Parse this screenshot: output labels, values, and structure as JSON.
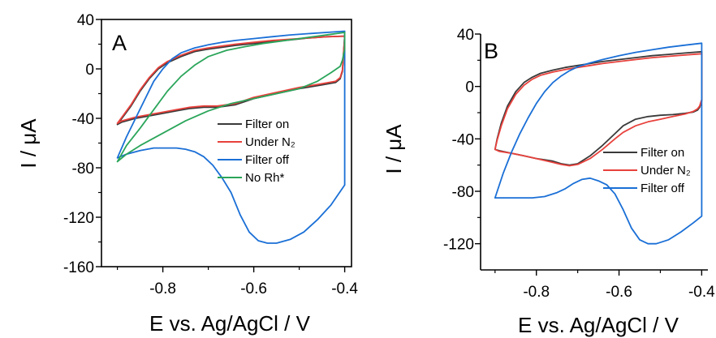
{
  "chart_data": [
    {
      "type": "line",
      "panel_label": "A",
      "xlabel": "E vs. Ag/AgCl / V",
      "ylabel": "I / μA",
      "xlim": [
        -0.935,
        -0.385
      ],
      "ylim": [
        -160,
        40
      ],
      "xticks": [
        -0.8,
        -0.6,
        -0.4
      ],
      "yticks": [
        40,
        0,
        -40,
        -80,
        -120,
        -160
      ],
      "grid": false,
      "legend_position": "right",
      "series": [
        {
          "name": "Filter on",
          "color": "#3a3a3a",
          "x": [
            -0.9,
            -0.89,
            -0.87,
            -0.85,
            -0.83,
            -0.81,
            -0.79,
            -0.76,
            -0.73,
            -0.7,
            -0.67,
            -0.64,
            -0.6,
            -0.56,
            -0.52,
            -0.48,
            -0.44,
            -0.4,
            -0.4,
            -0.405,
            -0.41,
            -0.42,
            -0.45,
            -0.5,
            -0.55,
            -0.6,
            -0.64,
            -0.68,
            -0.71,
            -0.74,
            -0.77,
            -0.8,
            -0.83,
            -0.86,
            -0.89,
            -0.9
          ],
          "y": [
            -45,
            -40,
            -30,
            -18,
            -8,
            0,
            5,
            10,
            14,
            16,
            17.5,
            19,
            20.5,
            22,
            23.5,
            25,
            26,
            26.5,
            26.5,
            -2,
            -8,
            -11,
            -13,
            -16,
            -20,
            -24,
            -29,
            -31,
            -31,
            -32,
            -34,
            -36,
            -38,
            -40,
            -43,
            -45
          ]
        },
        {
          "name": "Under N₂",
          "color": "#e8413c",
          "x": [
            -0.9,
            -0.89,
            -0.87,
            -0.85,
            -0.83,
            -0.81,
            -0.79,
            -0.76,
            -0.73,
            -0.7,
            -0.67,
            -0.64,
            -0.6,
            -0.56,
            -0.52,
            -0.48,
            -0.44,
            -0.4,
            -0.4,
            -0.405,
            -0.41,
            -0.42,
            -0.45,
            -0.5,
            -0.55,
            -0.6,
            -0.64,
            -0.68,
            -0.71,
            -0.74,
            -0.77,
            -0.8,
            -0.83,
            -0.86,
            -0.89,
            -0.9
          ],
          "y": [
            -44,
            -39,
            -29,
            -17,
            -7,
            1,
            6,
            11,
            15,
            17,
            18.5,
            20,
            21.5,
            23,
            24,
            25,
            26,
            26.5,
            26.5,
            -1,
            -7,
            -10,
            -12,
            -15,
            -19,
            -23,
            -28,
            -30,
            -30,
            -31,
            -33,
            -35,
            -37,
            -39,
            -42,
            -44
          ]
        },
        {
          "name": "Filter off",
          "color": "#1a6fd6",
          "x": [
            -0.9,
            -0.88,
            -0.86,
            -0.84,
            -0.82,
            -0.8,
            -0.78,
            -0.76,
            -0.73,
            -0.7,
            -0.67,
            -0.64,
            -0.6,
            -0.56,
            -0.52,
            -0.48,
            -0.44,
            -0.4,
            -0.4,
            -0.43,
            -0.46,
            -0.49,
            -0.52,
            -0.55,
            -0.57,
            -0.59,
            -0.61,
            -0.63,
            -0.65,
            -0.67,
            -0.69,
            -0.71,
            -0.73,
            -0.75,
            -0.77,
            -0.79,
            -0.82,
            -0.85,
            -0.88,
            -0.9
          ],
          "y": [
            -72,
            -55,
            -40,
            -25,
            -10,
            0,
            8,
            13,
            17,
            19.5,
            21.5,
            23,
            24.5,
            26,
            27.5,
            28.5,
            29.5,
            30.5,
            -94,
            -110,
            -122,
            -132,
            -138,
            -141,
            -141,
            -139,
            -132,
            -118,
            -100,
            -88,
            -78,
            -71,
            -67,
            -65,
            -64,
            -64,
            -64,
            -66,
            -69,
            -72
          ]
        },
        {
          "name": "No Rh*",
          "color": "#2aa55a",
          "x": [
            -0.9,
            -0.88,
            -0.85,
            -0.82,
            -0.79,
            -0.76,
            -0.73,
            -0.7,
            -0.66,
            -0.62,
            -0.58,
            -0.54,
            -0.5,
            -0.46,
            -0.43,
            -0.4,
            -0.4,
            -0.405,
            -0.41,
            -0.43,
            -0.46,
            -0.5,
            -0.55,
            -0.6,
            -0.65,
            -0.7,
            -0.75,
            -0.8,
            -0.85,
            -0.88,
            -0.9
          ],
          "y": [
            -75,
            -62,
            -48,
            -33,
            -18,
            -6,
            3,
            10,
            15,
            18,
            20.5,
            22.5,
            24.5,
            26.5,
            28,
            29.5,
            16,
            7,
            2,
            -3,
            -10,
            -16,
            -20,
            -24,
            -28,
            -34,
            -42,
            -52,
            -62,
            -69,
            -75
          ]
        }
      ]
    },
    {
      "type": "line",
      "panel_label": "B",
      "xlabel": "E vs. Ag/AgCl / V",
      "ylabel": "I / μA",
      "xlim": [
        -0.935,
        -0.385
      ],
      "ylim": [
        -140,
        40
      ],
      "xticks": [
        -0.8,
        -0.6,
        -0.4
      ],
      "yticks": [
        40,
        0,
        -40,
        -80,
        -120
      ],
      "grid": false,
      "legend_position": "right",
      "series": [
        {
          "name": "Filter on",
          "color": "#3a3a3a",
          "x": [
            -0.9,
            -0.895,
            -0.885,
            -0.87,
            -0.85,
            -0.83,
            -0.81,
            -0.79,
            -0.76,
            -0.73,
            -0.7,
            -0.67,
            -0.64,
            -0.6,
            -0.56,
            -0.52,
            -0.48,
            -0.44,
            -0.4,
            -0.4,
            -0.405,
            -0.41,
            -0.42,
            -0.44,
            -0.47,
            -0.5,
            -0.53,
            -0.56,
            -0.59,
            -0.61,
            -0.64,
            -0.67,
            -0.7,
            -0.72,
            -0.74,
            -0.76,
            -0.78,
            -0.8,
            -0.83,
            -0.86,
            -0.89,
            -0.9
          ],
          "y": [
            -48,
            -40,
            -28,
            -15,
            -4,
            3,
            7,
            10,
            12.5,
            14.5,
            16,
            17.5,
            19,
            20.5,
            22,
            23.5,
            24.5,
            25.5,
            26.5,
            -11,
            -16,
            -18,
            -19.5,
            -20.5,
            -21.5,
            -22,
            -23,
            -25,
            -30,
            -36,
            -45,
            -53,
            -59,
            -60,
            -59,
            -57,
            -56,
            -55,
            -53,
            -51,
            -49,
            -48
          ]
        },
        {
          "name": "Under N₂",
          "color": "#e8413c",
          "x": [
            -0.9,
            -0.895,
            -0.885,
            -0.87,
            -0.85,
            -0.83,
            -0.81,
            -0.79,
            -0.76,
            -0.73,
            -0.7,
            -0.67,
            -0.64,
            -0.6,
            -0.56,
            -0.52,
            -0.48,
            -0.44,
            -0.4,
            -0.4,
            -0.405,
            -0.41,
            -0.42,
            -0.44,
            -0.47,
            -0.5,
            -0.53,
            -0.56,
            -0.59,
            -0.61,
            -0.64,
            -0.67,
            -0.7,
            -0.72,
            -0.74,
            -0.76,
            -0.78,
            -0.8,
            -0.83,
            -0.86,
            -0.89,
            -0.9
          ],
          "y": [
            -48,
            -41,
            -30,
            -17,
            -6,
            1,
            5.5,
            8.5,
            11,
            13,
            14.5,
            16,
            17.5,
            19,
            20.5,
            22,
            23,
            24,
            25,
            -10,
            -15,
            -17,
            -19,
            -21,
            -23,
            -25,
            -27,
            -30,
            -35,
            -40,
            -48,
            -55,
            -59.5,
            -60.5,
            -59.5,
            -58,
            -56.5,
            -55,
            -53,
            -51,
            -49.5,
            -48
          ]
        },
        {
          "name": "Filter off",
          "color": "#1a6fd6",
          "x": [
            -0.9,
            -0.88,
            -0.86,
            -0.84,
            -0.82,
            -0.8,
            -0.78,
            -0.76,
            -0.74,
            -0.72,
            -0.7,
            -0.67,
            -0.64,
            -0.6,
            -0.56,
            -0.52,
            -0.48,
            -0.44,
            -0.4,
            -0.4,
            -0.42,
            -0.45,
            -0.48,
            -0.51,
            -0.53,
            -0.55,
            -0.57,
            -0.59,
            -0.61,
            -0.63,
            -0.65,
            -0.67,
            -0.69,
            -0.71,
            -0.73,
            -0.75,
            -0.78,
            -0.81,
            -0.84,
            -0.87,
            -0.9
          ],
          "y": [
            -85,
            -66,
            -50,
            -36,
            -24,
            -13,
            -4,
            3,
            8,
            12,
            15,
            18,
            20.5,
            23.5,
            26,
            28,
            30,
            31.5,
            33,
            -99,
            -104,
            -111,
            -117,
            -120,
            -120,
            -117,
            -108,
            -94,
            -82,
            -75,
            -72,
            -70,
            -71,
            -74,
            -78,
            -81,
            -84,
            -85,
            -85,
            -85,
            -85
          ]
        }
      ]
    }
  ]
}
